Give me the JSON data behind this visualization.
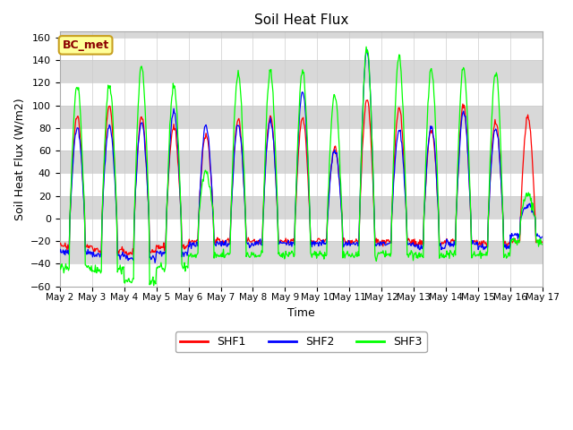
{
  "title": "Soil Heat Flux",
  "ylabel": "Soil Heat Flux (W/m2)",
  "xlabel": "Time",
  "ylim": [
    -60,
    165
  ],
  "yticks": [
    -60,
    -40,
    -20,
    0,
    20,
    40,
    60,
    80,
    100,
    120,
    140,
    160
  ],
  "bg_color": "#d8d8d8",
  "white_color": "#ffffff",
  "fig_color": "#ffffff",
  "line_colors": {
    "SHF1": "red",
    "SHF2": "blue",
    "SHF3": "lime"
  },
  "annotation_text": "BC_met",
  "annotation_facecolor": "#ffff99",
  "annotation_edgecolor": "#c8a020",
  "annotation_textcolor": "#8b0000",
  "n_days": 15,
  "pts_per_day": 48
}
